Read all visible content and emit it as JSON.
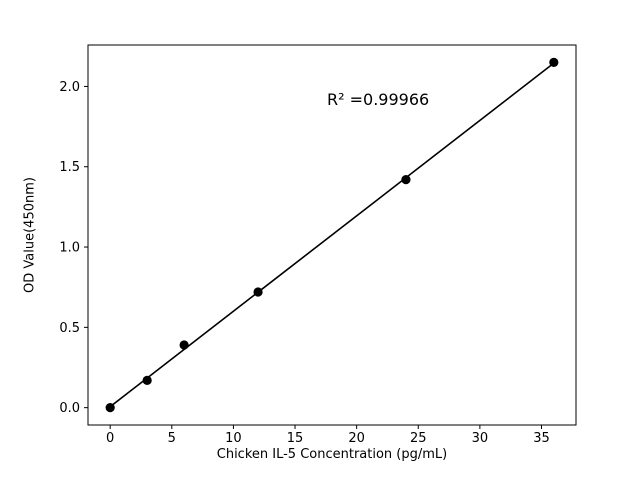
{
  "figure": {
    "background": "#ffffff"
  },
  "chart_data": {
    "type": "scatter",
    "title": "",
    "xlabel": "Chicken IL-5 Concentration (pg/mL)",
    "ylabel": "OD Value(450nm)",
    "x": [
      0,
      3,
      6,
      12,
      24,
      36
    ],
    "y": [
      0.0,
      0.17,
      0.39,
      0.72,
      1.42,
      2.15
    ],
    "fit_line": {
      "x": [
        0,
        36
      ],
      "y": [
        0.006,
        2.145
      ]
    },
    "xlim": [
      -1.8,
      37.8
    ],
    "ylim": [
      -0.108,
      2.258
    ],
    "xtick_values": [
      0,
      5,
      10,
      15,
      20,
      25,
      30,
      35
    ],
    "xtick_labels": [
      "0",
      "5",
      "10",
      "15",
      "20",
      "25",
      "30",
      "35"
    ],
    "ytick_values": [
      0.0,
      0.5,
      1.0,
      1.5,
      2.0
    ],
    "ytick_labels": [
      "0.0",
      "0.5",
      "1.0",
      "1.5",
      "2.0"
    ],
    "annotation": {
      "text": "R² =0.99966",
      "x": 18.0,
      "y": 1.95
    },
    "marker_color": "#000000",
    "line_color": "#000000",
    "axis_color": "#000000",
    "grid": false,
    "legend": null
  }
}
